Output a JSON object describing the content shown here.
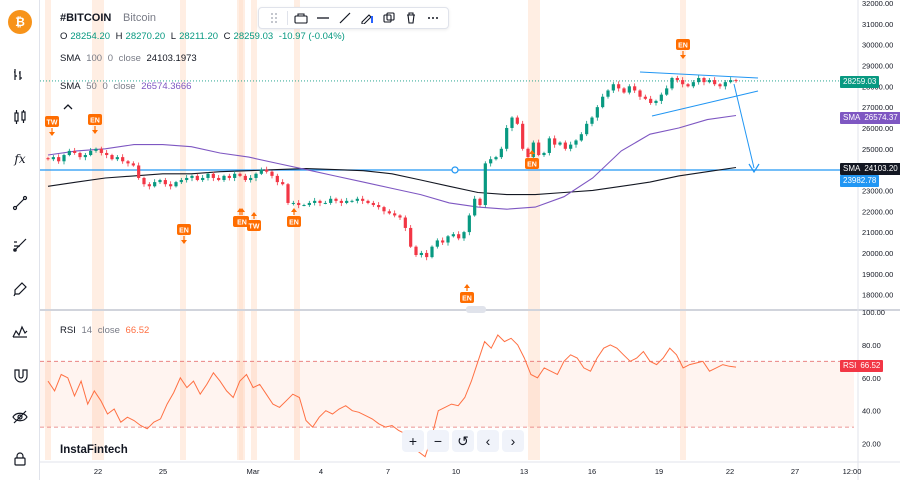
{
  "symbol": {
    "ticker": "#BITCOIN",
    "name": "Bitcoin"
  },
  "ohlc": {
    "o_label": "O",
    "o_value": "28254.20",
    "h_label": "H",
    "h_value": "28270.20",
    "l_label": "L",
    "l_value": "28211.20",
    "c_label": "C",
    "c_value": "28259.03",
    "change": "-10.97 (-0.04%)"
  },
  "indicators": {
    "sma100": {
      "label": "SMA",
      "period": "100",
      "shift": "0",
      "source": "close",
      "value": "24103.1973"
    },
    "sma50": {
      "label": "SMA",
      "period": "50",
      "shift": "0",
      "source": "close",
      "value": "26574.3666"
    },
    "rsi": {
      "label": "RSI",
      "period": "14",
      "source": "close",
      "value": "66.52"
    }
  },
  "price_tags": {
    "last": "28259.03",
    "sma50_label": "SMA",
    "sma50_value": "26574.37",
    "sma100_label": "SMA",
    "sma100_value": "24103.20",
    "hline": "23982.78",
    "rsi_label": "RSI",
    "rsi_value": "66.52"
  },
  "watermark": "InstaFintech",
  "nav": {
    "zoom_in": "+",
    "zoom_out": "−",
    "reset": "↺",
    "back": "‹",
    "forward": "›"
  },
  "colors": {
    "up": "#089981",
    "down": "#f23645",
    "sma50": "#7e57c2",
    "sma100": "#131722",
    "rsi": "#ff7043",
    "signal": "#ff6d00",
    "hline": "#2196f3",
    "trend": "#2196f3",
    "brand": "#f7931a"
  },
  "toolbar_icons": [
    "bitcoin-icon",
    "chart-type-icon",
    "candles-icon",
    "indicators-icon",
    "trendline-icon",
    "fib-icon",
    "brush-icon",
    "patterns-icon",
    "magnet-icon",
    "eye-icon",
    "lock-icon"
  ],
  "chart_data": [
    {
      "type": "candlestick",
      "title": "#BITCOIN Bitcoin",
      "ylim": [
        17500,
        32000
      ],
      "y_ticks": [
        18000,
        19000,
        20000,
        21000,
        22000,
        23000,
        24000,
        25000,
        26000,
        27000,
        28000,
        29000,
        30000,
        31000,
        32000
      ],
      "x_ticks": [
        "22",
        "25",
        "Mar",
        "4",
        "7",
        "10",
        "13",
        "16",
        "19",
        "22",
        "27",
        "12:00"
      ],
      "close": [
        24500,
        24600,
        24400,
        24700,
        24900,
        24800,
        24600,
        24700,
        24900,
        25000,
        24800,
        24700,
        24500,
        24600,
        24400,
        24300,
        24200,
        23600,
        23300,
        23200,
        23400,
        23500,
        23300,
        23200,
        23400,
        23500,
        23600,
        23700,
        23500,
        23600,
        23800,
        23600,
        23500,
        23700,
        23600,
        23800,
        23700,
        23500,
        23600,
        23800,
        24000,
        23900,
        23700,
        23400,
        23300,
        22400,
        22400,
        22300,
        22300,
        22400,
        22500,
        22400,
        22400,
        22600,
        22500,
        22400,
        22500,
        22500,
        22600,
        22500,
        22400,
        22300,
        22200,
        22000,
        21900,
        21800,
        21700,
        21200,
        20300,
        19900,
        20000,
        19800,
        20300,
        20600,
        20500,
        20800,
        20900,
        20700,
        21000,
        21800,
        22600,
        22300,
        24300,
        24500,
        24600,
        25000,
        26000,
        26500,
        26200,
        25000,
        24600,
        25300,
        24700,
        24800,
        25500,
        25200,
        25300,
        25000,
        25200,
        25400,
        25700,
        26200,
        26500,
        27000,
        27500,
        27800,
        28100,
        27900,
        27700,
        28000,
        27800,
        27500,
        27400,
        27200,
        27300,
        27600,
        27900,
        28400,
        28300,
        28100,
        28000,
        28200,
        28400,
        28200,
        28300,
        28100,
        28000,
        28200,
        28300,
        28259
      ],
      "sma50": [
        24700,
        24900,
        25000,
        25200,
        25200,
        25100,
        24800,
        24600,
        24300,
        24000,
        23700,
        23400,
        23100,
        22800,
        22400,
        22200,
        22100,
        22200,
        22700,
        23600,
        24900,
        25700,
        26000,
        26400,
        26600
      ],
      "sma100": [
        23200,
        23400,
        23600,
        23700,
        23800,
        23800,
        23900,
        23950,
        24000,
        24050,
        24000,
        23950,
        23800,
        23500,
        23200,
        22900,
        22800,
        22800,
        22900,
        23000,
        23200,
        23400,
        23700,
        23900,
        24100
      ],
      "horizontal_line": 23982.78,
      "last_price": 28259.03,
      "signals": [
        {
          "label": "TW",
          "direction": "down"
        },
        {
          "label": "EN",
          "direction": "down"
        },
        {
          "label": "EN",
          "direction": "down"
        },
        {
          "label": "EN",
          "direction": "up"
        },
        {
          "label": "EN",
          "direction": "up"
        },
        {
          "label": "TW",
          "direction": "up"
        },
        {
          "label": "EN",
          "direction": "up"
        },
        {
          "label": "EN",
          "direction": "up"
        },
        {
          "label": "EN",
          "direction": "up"
        },
        {
          "label": "EN",
          "direction": "down"
        }
      ]
    },
    {
      "type": "line",
      "title": "RSI 14 close",
      "ylim": [
        10,
        100
      ],
      "y_ticks": [
        20,
        40,
        60,
        80,
        100
      ],
      "levels": [
        70,
        30
      ],
      "values": [
        58,
        52,
        62,
        60,
        49,
        58,
        44,
        52,
        46,
        38,
        41,
        33,
        36,
        34,
        31,
        29,
        33,
        35,
        44,
        51,
        60,
        54,
        58,
        50,
        56,
        63,
        58,
        52,
        48,
        58,
        62,
        54,
        56,
        50,
        44,
        42,
        46,
        50,
        48,
        34,
        30,
        36,
        40,
        38,
        41,
        43,
        40,
        39,
        37,
        35,
        32,
        30,
        31,
        28,
        26,
        20,
        15,
        12,
        24,
        40,
        42,
        44,
        43,
        48,
        58,
        70,
        82,
        78,
        86,
        82,
        84,
        80,
        72,
        62,
        60,
        66,
        64,
        62,
        70,
        74,
        72,
        66,
        64,
        72,
        78,
        80,
        78,
        74,
        70,
        72,
        76,
        70,
        68,
        72,
        78,
        74,
        66,
        68,
        69,
        70,
        64,
        66,
        68,
        67,
        66.52
      ],
      "last_value": 66.52
    }
  ]
}
